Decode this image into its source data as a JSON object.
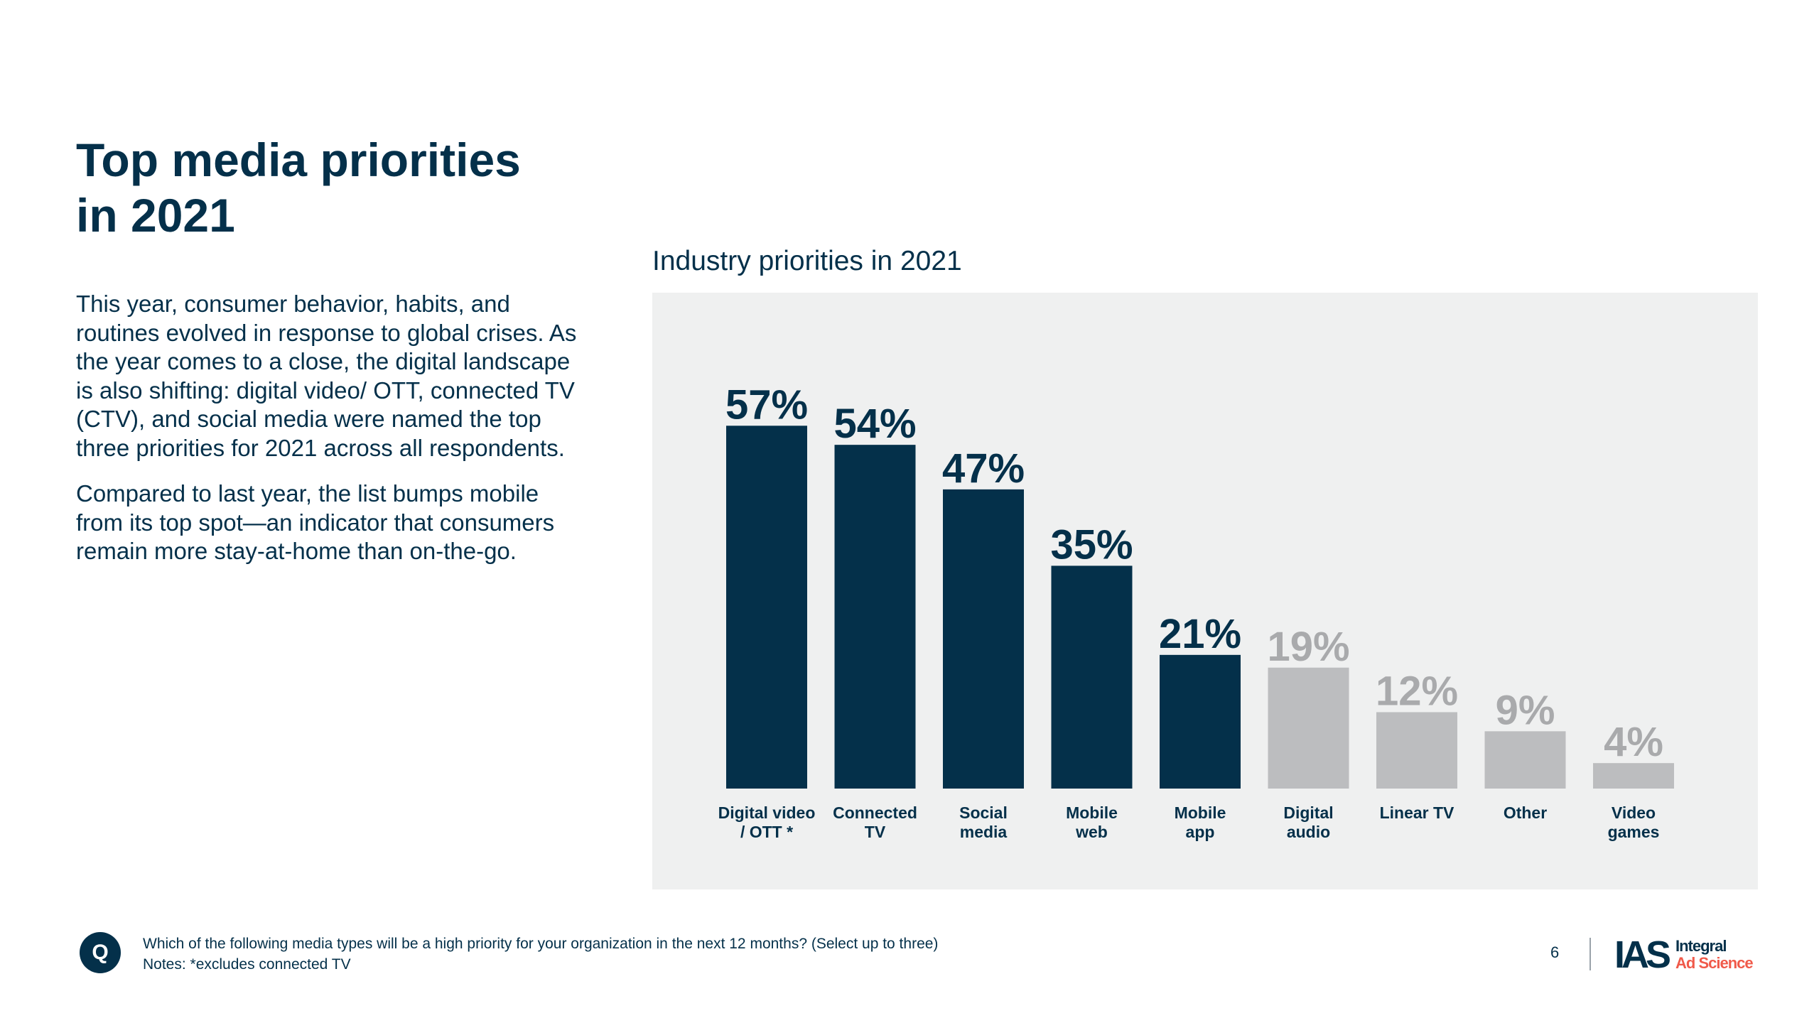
{
  "page": {
    "title": "Top media priorities\nin 2021",
    "paragraphs": [
      "This year, consumer behavior, habits, and routines evolved in response to global crises. As the year comes to a close, the digital landscape is also shifting: digital video/ OTT, connected TV (CTV), and social media were named the top three priorities for 2021 across all respondents.",
      "Compared to last year, the list bumps mobile from its top spot—an indicator that consumers remain more stay-at-home than on-the-go."
    ]
  },
  "chart_data": {
    "type": "bar",
    "title": "Industry priorities in 2021",
    "categories": [
      [
        "Digital video",
        "/ OTT *"
      ],
      [
        "Connected",
        "TV"
      ],
      [
        "Social",
        "media"
      ],
      [
        "Mobile",
        "web"
      ],
      [
        "Mobile",
        "app"
      ],
      [
        "Digital",
        "audio"
      ],
      [
        "Linear TV"
      ],
      [
        "Other"
      ],
      [
        "Video",
        "games"
      ]
    ],
    "values": [
      57,
      54,
      47,
      35,
      21,
      19,
      12,
      9,
      4
    ],
    "value_labels": [
      "57%",
      "54%",
      "47%",
      "35%",
      "21%",
      "19%",
      "12%",
      "9%",
      "4%"
    ],
    "highlighted": [
      true,
      true,
      true,
      true,
      true,
      false,
      false,
      false,
      false
    ],
    "ylim": [
      0,
      100
    ],
    "grid": false,
    "legend": "none",
    "colors": {
      "highlight_bar": "#04304a",
      "other_bar": "#bcbdbf",
      "highlight_label": "#04304a",
      "other_label": "#a9aaac"
    }
  },
  "footer": {
    "badge": "Q",
    "question": "Which of the following media types will be a high priority for your organization in the next 12 months? (Select up to three)",
    "note": "Notes: *excludes connected TV",
    "page_number": "6",
    "logo": {
      "mark": "IAS",
      "line1": "Integral",
      "line2": "Ad Science"
    }
  }
}
